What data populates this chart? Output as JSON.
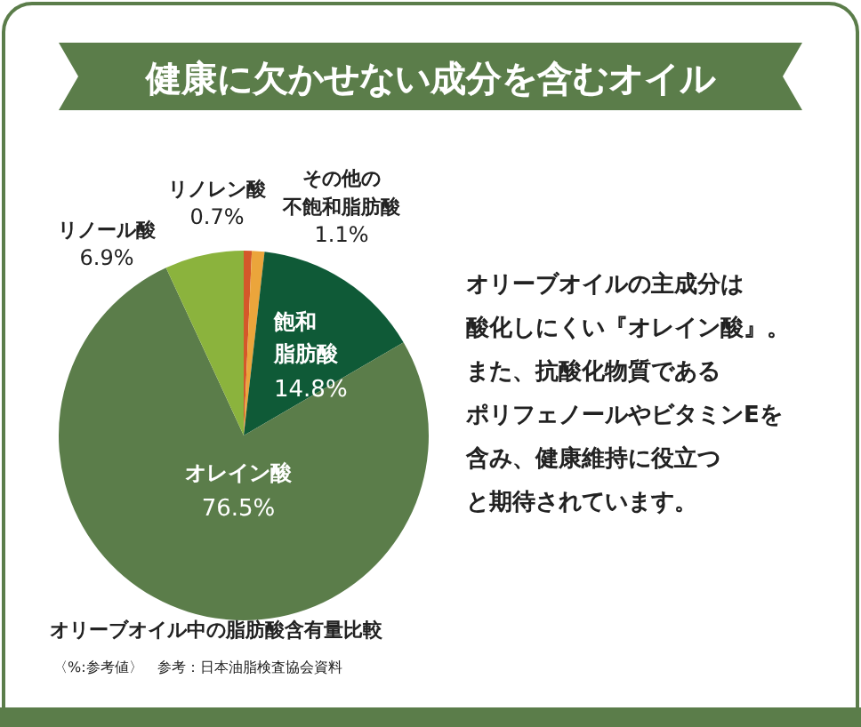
{
  "chart_data": {
    "type": "pie",
    "title": "健康に欠かせない成分を含むオイル",
    "categories": [
      "リノレン酸",
      "その他の不飽和脂肪酸",
      "飽和脂肪酸",
      "オレイン酸",
      "リノール酸"
    ],
    "values": [
      0.7,
      1.1,
      14.8,
      76.5,
      6.9
    ],
    "value_labels": [
      "0.7%",
      "1.1%",
      "14.8%",
      "76.5%",
      "6.9%"
    ],
    "colors": [
      "#d4582a",
      "#eba53b",
      "#0f5a37",
      "#5b7d4a",
      "#8bb33d"
    ],
    "annotations": [
      "オリーブオイルの主成分は酸化しにくい『オレイン酸』。また、抗酸化物質であるポリフェノールやビタミンEを含み、健康維持に役立つと期待されています。",
      "オリーブオイル中の脂肪酸含有量比較",
      "〈%:参考値〉　参考：日本油脂検査協会資料"
    ]
  }
}
